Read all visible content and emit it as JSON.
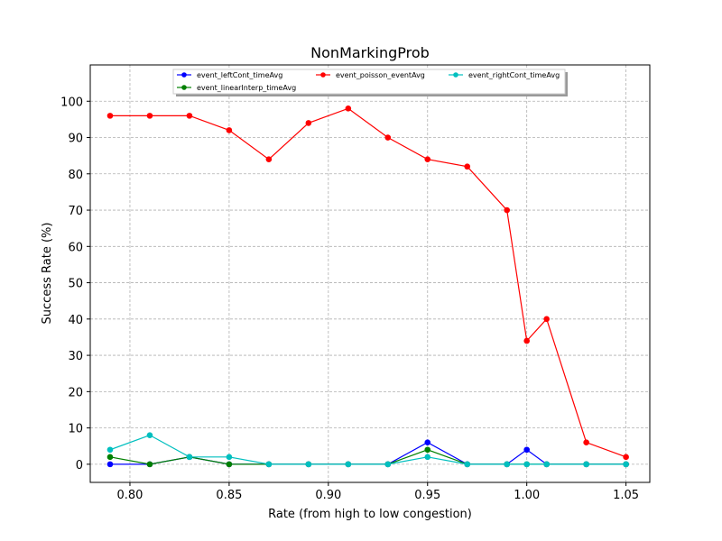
{
  "chart_data": {
    "type": "line",
    "title": "NonMarkingProb",
    "xlabel": "Rate (from high to low congestion)",
    "ylabel": "Success Rate (%)",
    "xlim": [
      0.78,
      1.062
    ],
    "ylim": [
      -5,
      110
    ],
    "xticks": [
      0.8,
      0.85,
      0.9,
      0.95,
      1.0,
      1.05
    ],
    "xtick_labels": [
      "0.80",
      "0.85",
      "0.90",
      "0.95",
      "1.00",
      "1.05"
    ],
    "yticks": [
      0,
      10,
      20,
      30,
      40,
      50,
      60,
      70,
      80,
      90,
      100
    ],
    "ytick_labels": [
      "0",
      "10",
      "20",
      "30",
      "40",
      "50",
      "60",
      "70",
      "80",
      "90",
      "100"
    ],
    "grid": true,
    "legend_position": "top-center",
    "x": [
      0.79,
      0.81,
      0.83,
      0.85,
      0.87,
      0.89,
      0.91,
      0.93,
      0.95,
      0.97,
      0.99,
      1.0,
      1.01,
      1.03,
      1.05
    ],
    "series": [
      {
        "name": "event_leftCont_timeAvg",
        "color": "#0000ff",
        "values": [
          0,
          0,
          2,
          0,
          0,
          0,
          0,
          0,
          6,
          0,
          0,
          4,
          0,
          0,
          0
        ]
      },
      {
        "name": "event_linearInterp_timeAvg",
        "color": "#008000",
        "values": [
          2,
          0,
          2,
          0,
          0,
          0,
          0,
          0,
          4,
          0,
          0,
          0,
          0,
          0,
          0
        ]
      },
      {
        "name": "event_poisson_eventAvg",
        "color": "#ff0000",
        "values": [
          96,
          96,
          96,
          92,
          84,
          94,
          98,
          90,
          84,
          82,
          70,
          34,
          40,
          6,
          2
        ]
      },
      {
        "name": "event_rightCont_timeAvg",
        "color": "#00bfbf",
        "values": [
          4,
          8,
          2,
          2,
          0,
          0,
          0,
          0,
          2,
          0,
          0,
          0,
          0,
          0,
          0
        ]
      }
    ]
  }
}
